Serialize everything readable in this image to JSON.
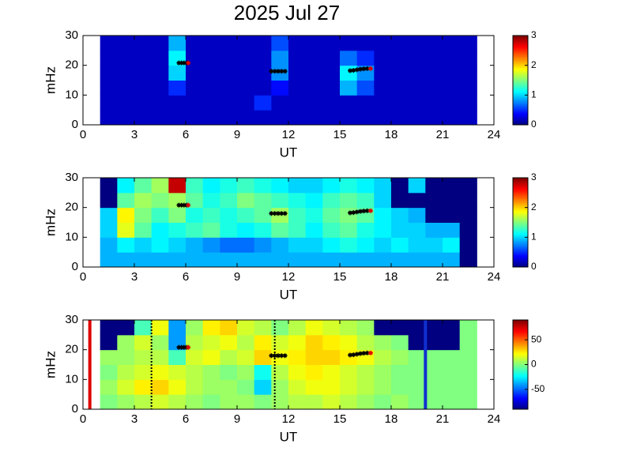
{
  "chart_data": [
    {
      "type": "heatmap",
      "title": "2025 Jul 27",
      "xlabel": "UT",
      "ylabel": "mHz",
      "xlim": [
        0,
        24
      ],
      "xticks": [
        0,
        3,
        6,
        9,
        12,
        15,
        18,
        21,
        24
      ],
      "ylim": [
        0,
        30
      ],
      "yticks": [
        0,
        10,
        20,
        30
      ],
      "xbins": [
        1,
        2,
        3,
        4,
        5,
        6,
        7,
        8,
        9,
        10,
        11,
        12,
        13,
        14,
        15,
        16,
        17,
        18,
        19,
        20,
        21,
        22,
        23
      ],
      "ybins": [
        0,
        5,
        10,
        15,
        20,
        25,
        30
      ],
      "zlim": [
        0,
        3
      ],
      "zticks": [
        0,
        1,
        2,
        3
      ],
      "z": [
        [
          0.2,
          0.2,
          0.2,
          0.2,
          0.2,
          0.2,
          0.2,
          0.2,
          0.2,
          0.2,
          0.2,
          0.2,
          0.2,
          0.2,
          0.2,
          0.2,
          0.2,
          0.2,
          0.2,
          0.2,
          0.2,
          0.2
        ],
        [
          0.2,
          0.2,
          0.2,
          0.2,
          0.2,
          0.2,
          0.2,
          0.2,
          0.2,
          0.5,
          0.2,
          0.2,
          0.2,
          0.2,
          0.2,
          0.2,
          0.2,
          0.2,
          0.2,
          0.2,
          0.2,
          0.2
        ],
        [
          0.2,
          0.2,
          0.2,
          0.2,
          0.5,
          0.2,
          0.2,
          0.2,
          0.2,
          0.2,
          0.4,
          0.2,
          0.2,
          0.2,
          0.9,
          0.6,
          0.2,
          0.2,
          0.2,
          0.2,
          0.2,
          0.2
        ],
        [
          0.2,
          0.2,
          0.2,
          0.2,
          1.0,
          0.2,
          0.2,
          0.2,
          0.2,
          0.2,
          0.8,
          0.2,
          0.2,
          0.2,
          1.1,
          0.8,
          0.2,
          0.2,
          0.2,
          0.2,
          0.2,
          0.2
        ],
        [
          0.2,
          0.2,
          0.2,
          0.2,
          1.1,
          0.2,
          0.2,
          0.2,
          0.2,
          0.2,
          0.8,
          0.2,
          0.2,
          0.2,
          0.7,
          0.5,
          0.2,
          0.2,
          0.2,
          0.2,
          0.2,
          0.2
        ],
        [
          0.2,
          0.2,
          0.2,
          0.2,
          0.9,
          0.2,
          0.2,
          0.2,
          0.2,
          0.2,
          0.6,
          0.2,
          0.2,
          0.2,
          0.2,
          0.2,
          0.2,
          0.2,
          0.2,
          0.2,
          0.2,
          0.2
        ]
      ],
      "events": {
        "x": [
          5.6,
          5.75,
          5.9,
          6.05,
          11,
          11.2,
          11.4,
          11.6,
          11.8,
          15.6,
          15.8,
          16.0,
          16.2,
          16.4,
          16.6
        ],
        "y": [
          20.8,
          20.8,
          20.8,
          20.8,
          18,
          18,
          18,
          18,
          18,
          18.2,
          18.3,
          18.5,
          18.7,
          18.8,
          18.9
        ],
        "color": "#000000"
      },
      "flagged": {
        "x": [
          6.15,
          16.8
        ],
        "y": [
          20.8,
          18.9
        ],
        "color": "#e00000"
      }
    },
    {
      "type": "heatmap",
      "xlabel": "UT",
      "ylabel": "mHz",
      "xlim": [
        0,
        24
      ],
      "xticks": [
        0,
        3,
        6,
        9,
        12,
        15,
        18,
        21,
        24
      ],
      "ylim": [
        0,
        30
      ],
      "yticks": [
        0,
        10,
        20,
        30
      ],
      "xbins": [
        1,
        2,
        3,
        4,
        5,
        6,
        7,
        8,
        9,
        10,
        11,
        12,
        13,
        14,
        15,
        16,
        17,
        18,
        19,
        20,
        21,
        22,
        23
      ],
      "ybins": [
        0,
        5,
        10,
        15,
        20,
        25,
        30
      ],
      "zlim": [
        0,
        3
      ],
      "zticks": [
        0,
        1,
        2,
        3
      ],
      "z": [
        [
          0.9,
          0.9,
          0.9,
          0.9,
          0.9,
          0.9,
          0.9,
          0.9,
          0.9,
          0.9,
          0.9,
          0.9,
          0.9,
          0.9,
          0.9,
          0.9,
          0.9,
          0.9,
          0.9,
          0.9,
          0.9,
          0
        ],
        [
          0.9,
          1.1,
          1.0,
          1.1,
          1.0,
          0.9,
          0.8,
          0.7,
          0.7,
          0.8,
          0.9,
          1.0,
          1.0,
          1.1,
          1.2,
          1.1,
          1.0,
          1.1,
          1.0,
          1.0,
          1.1,
          0
        ],
        [
          1.0,
          1.8,
          1.4,
          1.1,
          1.2,
          1.3,
          1.4,
          1.2,
          1.1,
          1.2,
          1.4,
          1.3,
          1.1,
          1.3,
          1.4,
          1.2,
          1.1,
          1.0,
          1.0,
          0.9,
          0.9,
          0
        ],
        [
          1.0,
          1.9,
          1.5,
          1.3,
          1.5,
          1.2,
          1.3,
          1.2,
          1.3,
          1.4,
          1.6,
          1.3,
          1.2,
          1.4,
          1.5,
          1.4,
          1.1,
          1.0,
          0.9,
          0,
          0,
          0
        ],
        [
          0,
          1.4,
          1.6,
          1.5,
          1.6,
          1.4,
          1.2,
          1.3,
          1.5,
          1.4,
          1.3,
          1.2,
          1.1,
          1.3,
          1.4,
          1.3,
          1.0,
          0,
          0,
          0,
          0,
          0
        ],
        [
          0,
          1.1,
          1.4,
          1.6,
          2.8,
          1.3,
          1.1,
          1.2,
          1.3,
          1.2,
          1.1,
          1.0,
          1.0,
          1.1,
          1.2,
          1.1,
          1.0,
          0,
          1.0,
          0,
          0,
          0
        ]
      ]
    },
    {
      "type": "heatmap",
      "xlabel": "UT",
      "ylabel": "mHz",
      "xlim": [
        0,
        24
      ],
      "xticks": [
        0,
        3,
        6,
        9,
        12,
        15,
        18,
        21,
        24
      ],
      "ylim": [
        0,
        30
      ],
      "yticks": [
        0,
        10,
        20,
        30
      ],
      "xbins": [
        1,
        2,
        3,
        4,
        5,
        6,
        7,
        8,
        9,
        10,
        11,
        12,
        13,
        14,
        15,
        16,
        17,
        18,
        19,
        20,
        21,
        22,
        23
      ],
      "ybins": [
        0,
        5,
        10,
        15,
        20,
        25,
        30
      ],
      "zlim": [
        -90,
        90
      ],
      "zticks": [
        -50,
        0,
        50
      ],
      "z": [
        [
          0,
          5,
          10,
          15,
          10,
          5,
          0,
          5,
          5,
          0,
          5,
          10,
          10,
          15,
          10,
          5,
          0,
          5,
          0,
          0,
          0,
          0
        ],
        [
          5,
          15,
          25,
          30,
          20,
          10,
          5,
          5,
          0,
          -30,
          5,
          15,
          20,
          20,
          15,
          10,
          5,
          0,
          0,
          0,
          0,
          0
        ],
        [
          0,
          10,
          15,
          20,
          15,
          10,
          5,
          0,
          5,
          -20,
          10,
          20,
          25,
          20,
          15,
          10,
          5,
          0,
          0,
          0,
          0,
          0
        ],
        [
          5,
          5,
          10,
          10,
          -10,
          15,
          20,
          10,
          15,
          30,
          20,
          25,
          30,
          30,
          25,
          20,
          10,
          5,
          0,
          0,
          0,
          0
        ],
        [
          -90,
          5,
          15,
          5,
          -40,
          10,
          15,
          20,
          10,
          25,
          15,
          20,
          30,
          25,
          20,
          10,
          5,
          0,
          -90,
          -90,
          -90,
          0
        ],
        [
          -90,
          -90,
          -10,
          20,
          -40,
          5,
          25,
          30,
          15,
          10,
          0,
          10,
          20,
          15,
          10,
          5,
          -90,
          -90,
          -90,
          -90,
          -90,
          0
        ]
      ],
      "vlines": [
        {
          "x": 0.4,
          "color": "#e00000",
          "style": "solid"
        },
        {
          "x": 20,
          "color": "#1030d0",
          "style": "solid"
        },
        {
          "x": 4,
          "color": "#000000",
          "style": "dotted"
        },
        {
          "x": 11.2,
          "color": "#000000",
          "style": "dotted"
        }
      ]
    }
  ]
}
